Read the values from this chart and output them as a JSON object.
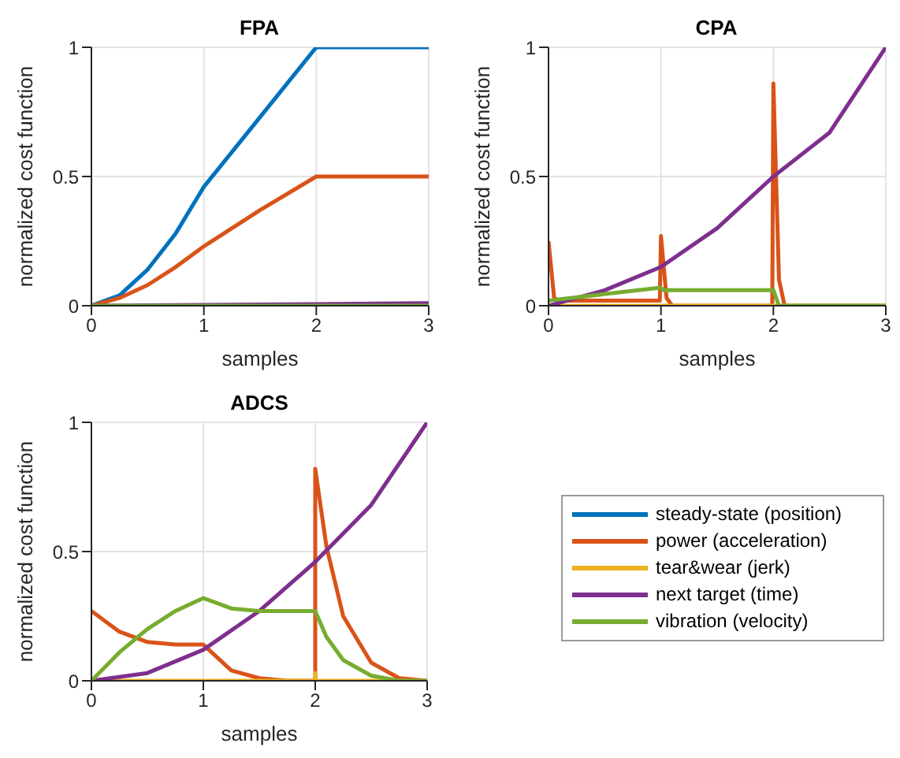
{
  "chart_data": [
    {
      "type": "line",
      "title": "FPA",
      "xlabel": "samples",
      "ylabel": "normalized cost function",
      "xlim": [
        0,
        3
      ],
      "xticks": [
        0,
        1,
        2,
        3
      ],
      "ylim": [
        0,
        1
      ],
      "yticks": [
        0,
        0.5,
        1
      ],
      "grid": true,
      "legend": false,
      "series": [
        {
          "color": "#0072bd",
          "x": [
            0,
            0.25,
            0.5,
            0.75,
            1,
            1.5,
            2,
            3
          ],
          "values": [
            0,
            0.04,
            0.14,
            0.28,
            0.46,
            0.73,
            1,
            1
          ]
        },
        {
          "color": "#d95319",
          "x": [
            0,
            0.25,
            0.5,
            0.75,
            1,
            1.5,
            2,
            3
          ],
          "values": [
            0,
            0.03,
            0.08,
            0.15,
            0.23,
            0.37,
            0.5,
            0.5
          ]
        },
        {
          "color": "#7e2f8e",
          "x": [
            0,
            1,
            2,
            3
          ],
          "values": [
            0,
            0.003,
            0.006,
            0.01
          ]
        },
        {
          "color": "#77ac30",
          "x": [
            0,
            3
          ],
          "values": [
            0,
            0
          ]
        }
      ]
    },
    {
      "type": "line",
      "title": "CPA",
      "xlabel": "samples",
      "ylabel": "normalized cost function",
      "xlim": [
        0,
        3
      ],
      "xticks": [
        0,
        1,
        2,
        3
      ],
      "ylim": [
        0,
        1
      ],
      "yticks": [
        0,
        0.5,
        1
      ],
      "grid": true,
      "legend": false,
      "series": [
        {
          "color": "#d95319",
          "x": [
            0,
            0.05,
            0.1,
            0.99,
            1,
            1.05,
            1.1,
            1.99,
            2,
            2.05,
            2.1,
            3
          ],
          "values": [
            0.25,
            0.03,
            0.02,
            0.02,
            0.27,
            0.03,
            0,
            0,
            0.86,
            0.1,
            0,
            0
          ]
        },
        {
          "color": "#edb120",
          "x": [
            0,
            3
          ],
          "values": [
            0,
            0
          ]
        },
        {
          "color": "#7e2f8e",
          "x": [
            0,
            0.5,
            1,
            1.5,
            2,
            2.5,
            3
          ],
          "values": [
            0,
            0.06,
            0.15,
            0.3,
            0.5,
            0.67,
            1
          ]
        },
        {
          "color": "#77ac30",
          "x": [
            0,
            1,
            1.02,
            2,
            2.05,
            3
          ],
          "values": [
            0.02,
            0.07,
            0.06,
            0.06,
            0,
            0
          ]
        }
      ]
    },
    {
      "type": "line",
      "title": "ADCS",
      "xlabel": "samples",
      "ylabel": "normalized cost function",
      "xlim": [
        0,
        3
      ],
      "xticks": [
        0,
        1,
        2,
        3
      ],
      "ylim": [
        0,
        1
      ],
      "yticks": [
        0,
        0.5,
        1
      ],
      "grid": true,
      "legend": "right",
      "series": [
        {
          "name": "steady-state (position)",
          "color": "#0072bd"
        },
        {
          "name": "power (acceleration)",
          "color": "#d95319",
          "x": [
            0,
            0.25,
            0.5,
            0.75,
            1,
            1.25,
            1.5,
            1.75,
            2,
            2,
            2.1,
            2.25,
            2.5,
            2.75,
            3
          ],
          "values": [
            0.27,
            0.19,
            0.15,
            0.14,
            0.14,
            0.04,
            0.01,
            0,
            0,
            0.82,
            0.52,
            0.25,
            0.07,
            0.01,
            0
          ]
        },
        {
          "name": "tear&wear (jerk)",
          "color": "#edb120",
          "x": [
            0,
            2,
            2,
            2,
            3
          ],
          "values": [
            0,
            0,
            0.03,
            0,
            0
          ]
        },
        {
          "name": "next target (time)",
          "color": "#7e2f8e",
          "x": [
            0,
            0.5,
            1,
            1.5,
            2,
            2.5,
            3
          ],
          "values": [
            0,
            0.03,
            0.12,
            0.27,
            0.46,
            0.68,
            1
          ]
        },
        {
          "name": "vibration (velocity)",
          "color": "#77ac30",
          "x": [
            0,
            0.25,
            0.5,
            0.75,
            1,
            1.25,
            1.5,
            2,
            2.1,
            2.25,
            2.5,
            2.75,
            3
          ],
          "values": [
            0,
            0.11,
            0.2,
            0.27,
            0.32,
            0.28,
            0.27,
            0.27,
            0.17,
            0.08,
            0.02,
            0,
            0
          ]
        }
      ]
    }
  ]
}
